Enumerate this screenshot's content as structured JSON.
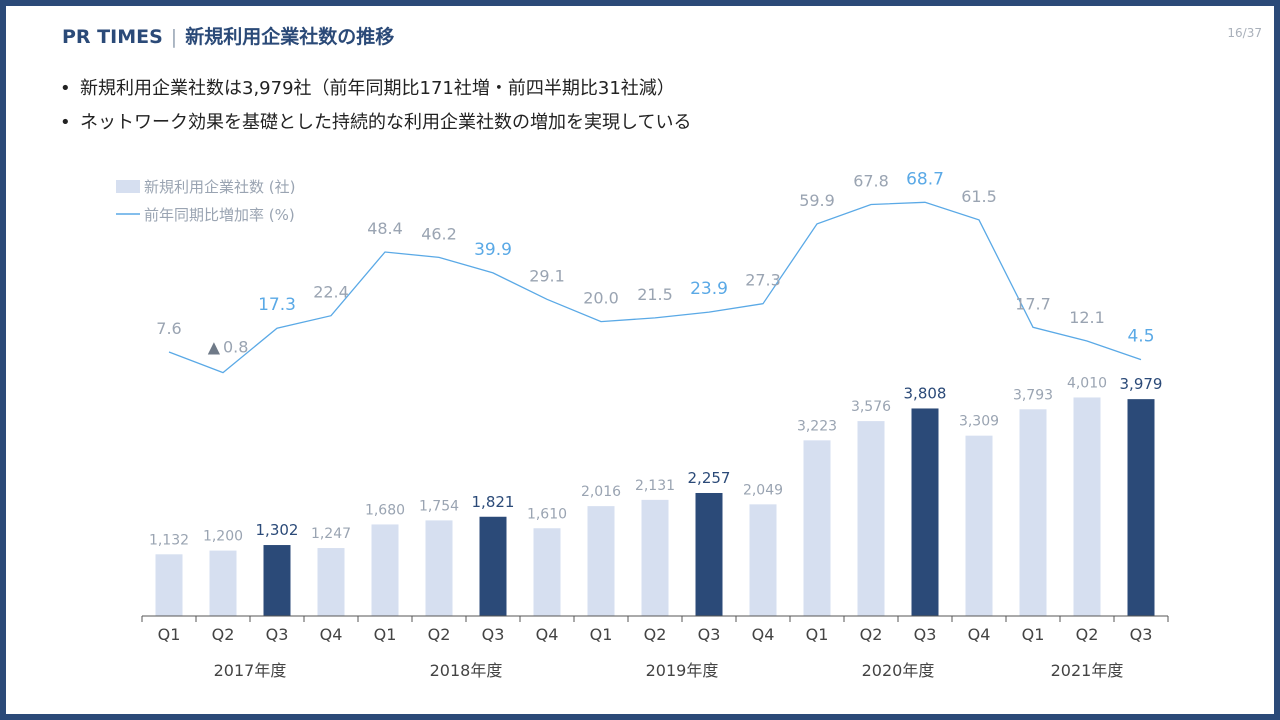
{
  "header": {
    "brand": "PR TIMES",
    "title": "新規利用企業社数の推移"
  },
  "page_number": "16/37",
  "bullets": [
    "新規利用企業社数は3,979社（前年同期比171社増・前四半期比31社減）",
    "ネットワーク効果を基礎とした持続的な利用企業社数の増加を実現している"
  ],
  "colors": {
    "frame": "#2b4a78",
    "bar_light": "#d6dff0",
    "bar_highlight": "#2b4a78",
    "line": "#5aa9e6",
    "label_gray": "#9aa4b2",
    "label_blue": "#5aa9e6",
    "axis": "#555555"
  },
  "chart_data": {
    "type": "bar+line",
    "legend": {
      "position": "top-left",
      "bar_label": "新規利用企業社数 (社)",
      "line_label": "前年同期比増加率 (%)"
    },
    "quarters": [
      "Q1",
      "Q2",
      "Q3",
      "Q4",
      "Q1",
      "Q2",
      "Q3",
      "Q4",
      "Q1",
      "Q2",
      "Q3",
      "Q4",
      "Q1",
      "Q2",
      "Q3",
      "Q4",
      "Q1",
      "Q2",
      "Q3"
    ],
    "fiscal_years": [
      {
        "label": "2017年度",
        "quarters": 4
      },
      {
        "label": "2018年度",
        "quarters": 4
      },
      {
        "label": "2019年度",
        "quarters": 4
      },
      {
        "label": "2020年度",
        "quarters": 4
      },
      {
        "label": "2021年度",
        "quarters": 3
      }
    ],
    "series": [
      {
        "name": "新規利用企業社数 (社)",
        "type": "bar",
        "values": [
          1132,
          1200,
          1302,
          1247,
          1680,
          1754,
          1821,
          1610,
          2016,
          2131,
          2257,
          2049,
          3223,
          3576,
          3808,
          3309,
          3793,
          4010,
          3979
        ],
        "labels": [
          "1,132",
          "1,200",
          "1,302",
          "1,247",
          "1,680",
          "1,754",
          "1,821",
          "1,610",
          "2,016",
          "2,131",
          "2,257",
          "2,049",
          "3,223",
          "3,576",
          "3,808",
          "3,309",
          "3,793",
          "4,010",
          "3,979"
        ],
        "highlighted": [
          false,
          false,
          true,
          false,
          false,
          false,
          true,
          false,
          false,
          false,
          true,
          false,
          false,
          false,
          true,
          false,
          false,
          false,
          true
        ]
      },
      {
        "name": "前年同期比増加率 (%)",
        "type": "line",
        "values": [
          7.6,
          -0.8,
          17.3,
          22.4,
          48.4,
          46.2,
          39.9,
          29.1,
          20.0,
          21.5,
          23.9,
          27.3,
          59.9,
          67.8,
          68.7,
          61.5,
          17.7,
          12.1,
          4.5
        ],
        "labels": [
          "7.6",
          "0.8",
          "17.3",
          "22.4",
          "48.4",
          "46.2",
          "39.9",
          "29.1",
          "20.0",
          "21.5",
          "23.9",
          "27.3",
          "59.9",
          "67.8",
          "68.7",
          "61.5",
          "17.7",
          "12.1",
          "4.5"
        ],
        "negative_marker": "▲",
        "highlighted": [
          false,
          false,
          true,
          false,
          false,
          false,
          true,
          false,
          false,
          false,
          true,
          false,
          false,
          false,
          true,
          false,
          false,
          false,
          true
        ]
      }
    ],
    "bar_ylim": [
      0,
      4500
    ],
    "line_ylim": [
      -5,
      90
    ]
  }
}
